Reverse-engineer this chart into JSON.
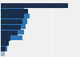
{
  "pairs": [
    {
      "dark": 88,
      "light": 30
    },
    {
      "dark": 35,
      "light": 38
    },
    {
      "dark": 30,
      "light": 34
    },
    {
      "dark": 28,
      "light": 32
    },
    {
      "dark": 26,
      "light": 30
    },
    {
      "dark": 22,
      "light": 28
    },
    {
      "dark": 12,
      "light": 10
    },
    {
      "dark": 10,
      "light": 8
    },
    {
      "dark": 6,
      "light": 5
    }
  ],
  "dark_color": "#1a2f4a",
  "light_color": "#2e75b6",
  "last_color": "#a0b4c8",
  "background_color": "#f0f0f0",
  "xlim": [
    0,
    100
  ],
  "bar_height": 0.38,
  "bar_gap": 0.42
}
